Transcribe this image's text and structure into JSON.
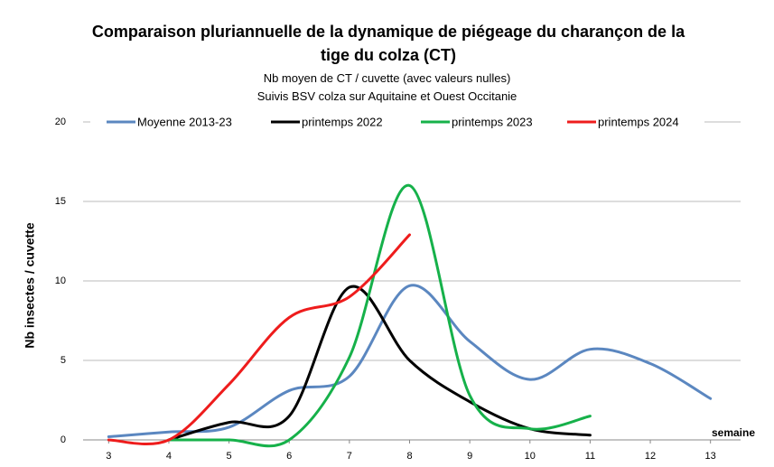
{
  "chart_data": {
    "type": "line",
    "title": "Comparaison pluriannuelle de la dynamique de piégeage du charançon de la tige du colza (CT)",
    "subtitles": [
      "Nb moyen de CT / cuvette (avec valeurs nulles)",
      "Suivis BSV colza sur Aquitaine et Ouest Occitanie"
    ],
    "y_label": "Nb insectes / cuvette",
    "x_label": "semaine",
    "x": [
      3,
      4,
      5,
      6,
      7,
      8,
      9,
      10,
      11,
      12,
      13
    ],
    "series": [
      {
        "name": "Moyenne 2013-23",
        "color": "#5b87c0",
        "values": [
          0.2,
          0.5,
          0.8,
          3.1,
          4.0,
          9.7,
          6.2,
          3.8,
          5.7,
          4.8,
          2.6
        ]
      },
      {
        "name": "printemps 2022",
        "color": "#000000",
        "values": [
          null,
          0,
          1.1,
          1.5,
          9.6,
          5.0,
          2.4,
          0.7,
          0.3,
          null,
          null
        ]
      },
      {
        "name": "printemps 2023",
        "color": "#16b14a",
        "values": [
          null,
          0,
          0,
          0,
          5.2,
          16.0,
          2.8,
          0.7,
          1.5,
          null,
          null
        ]
      },
      {
        "name": "printemps 2024",
        "color": "#ee1c1c",
        "values": [
          0,
          0,
          3.5,
          7.7,
          9.0,
          12.9,
          null,
          null,
          null,
          null,
          null
        ]
      }
    ],
    "xlim": [
      2.5,
      13.5
    ],
    "xticks": [
      3,
      4,
      5,
      6,
      7,
      8,
      9,
      10,
      11,
      12,
      13
    ],
    "ylim": [
      0,
      20
    ],
    "yticks": [
      0,
      5,
      10,
      15,
      20
    ],
    "grid": true,
    "smooth": true,
    "legend": "top"
  }
}
